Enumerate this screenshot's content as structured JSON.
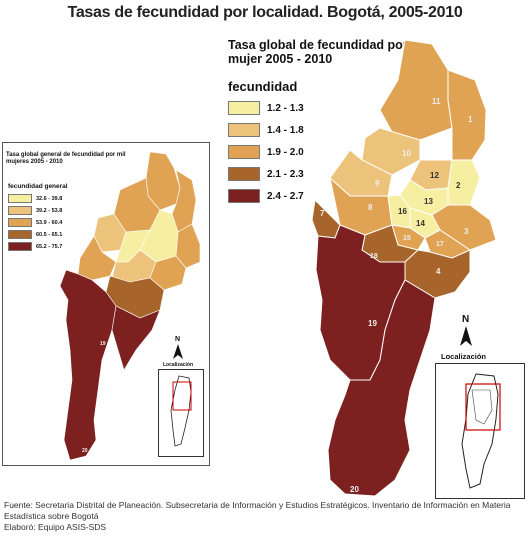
{
  "title": "Tasas de fecundidad por localidad. Bogotá, 2005-2010",
  "large_map": {
    "legend_title": "Tasa global de fecundidad por mujer 2005 - 2010",
    "legend_header": "fecundidad",
    "legend": [
      {
        "label": "1.2 - 1.3",
        "color": "#f6eea1"
      },
      {
        "label": "1.4 - 1.8",
        "color": "#edc37b"
      },
      {
        "label": "1.9 - 2.0",
        "color": "#e0a353"
      },
      {
        "label": "2.1 - 2.3",
        "color": "#a8652b"
      },
      {
        "label": "2.4 - 2.7",
        "color": "#7d2020"
      }
    ],
    "north": "N",
    "locator_label": "Localización",
    "district_labels": [
      "11",
      "1",
      "10",
      "9",
      "12",
      "2",
      "13",
      "8",
      "16",
      "14",
      "3",
      "7",
      "15",
      "17",
      "18",
      "4",
      "19",
      "20"
    ]
  },
  "small_map": {
    "legend_title": "Tasa global general de fecundidad por mil mujeres 2005 - 2010",
    "legend_header": "fecundidad general",
    "legend": [
      {
        "label": "32.6 - 39.8",
        "color": "#f6eea1"
      },
      {
        "label": "39.2 - 53.8",
        "color": "#edc37b"
      },
      {
        "label": "53.9 - 60.4",
        "color": "#e0a353"
      },
      {
        "label": "60.5 - 65.1",
        "color": "#a8652b"
      },
      {
        "label": "65.2 - 75.7",
        "color": "#7d2020"
      }
    ],
    "north": "N",
    "locator_label": "Localización",
    "district_labels": [
      "19",
      "20"
    ]
  },
  "footer": {
    "line1": "Fuente: Secretaria Distrital de Planeación. Subsecretaria de Información y Estudios Estratégicos. Inventario de Información en Materia Estadística sobre Bogotá",
    "line2": "Elaboró: Equipo ASIS-SDS"
  }
}
